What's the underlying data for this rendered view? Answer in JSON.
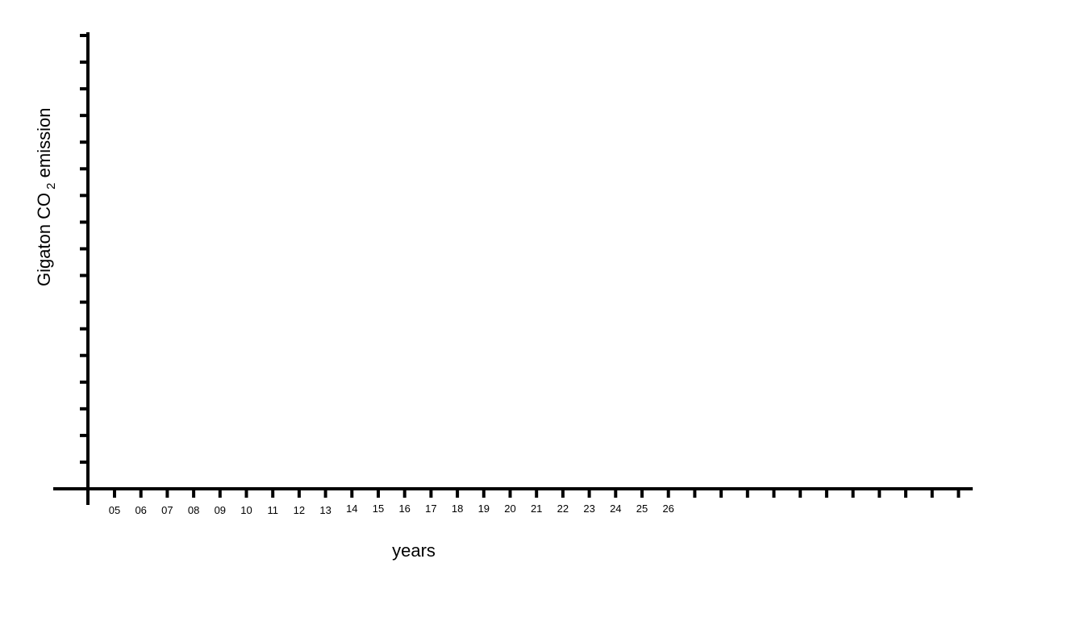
{
  "chart_data": {
    "type": "line",
    "title": "",
    "xlabel": "years",
    "ylabel": {
      "prefix": "Gigaton CO",
      "subscript": "2",
      "suffix": " emission"
    },
    "x_tick_labels": [
      "05",
      "06",
      "07",
      "08",
      "09",
      "10",
      "11",
      "12",
      "13",
      "14",
      "15",
      "16",
      "17",
      "18",
      "19",
      "20",
      "21",
      "22",
      "23",
      "24",
      "25",
      "26"
    ],
    "x_tick_count": 33,
    "y_tick_count": 17,
    "series": [],
    "grid": false,
    "colors": {
      "axis": "#000000",
      "background": "#ffffff"
    }
  }
}
